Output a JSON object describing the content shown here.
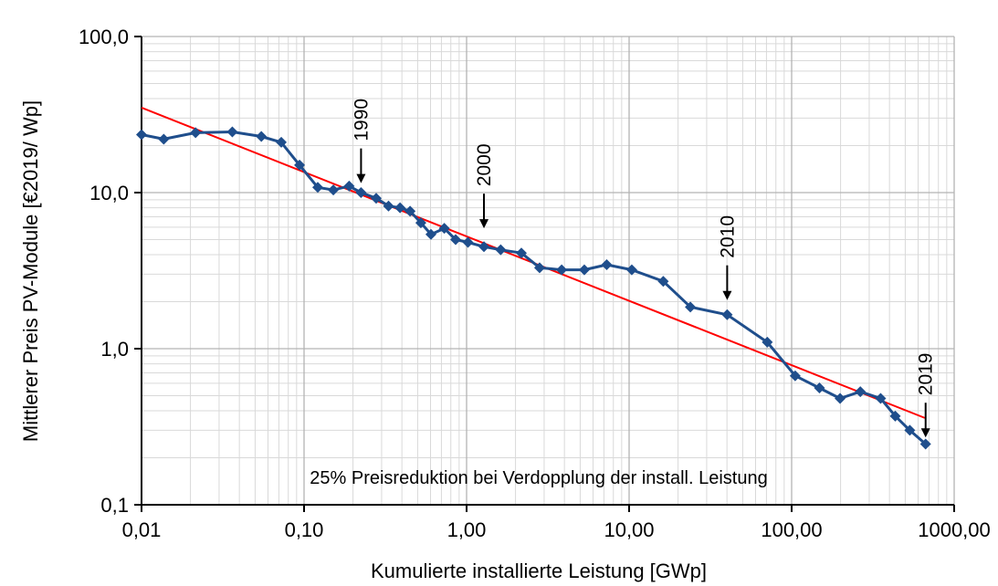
{
  "chart_data": {
    "type": "line",
    "x_scale": "log",
    "y_scale": "log",
    "xlabel": "Kumulierte installierte Leistung [GWp]",
    "ylabel": "Mittlerer Preis PV-Module [€2019/ Wp]",
    "xlim": [
      0.01,
      1000
    ],
    "ylim": [
      0.1,
      100
    ],
    "x_ticks": [
      {
        "value": 0.01,
        "label": "0,01"
      },
      {
        "value": 0.1,
        "label": "0,10"
      },
      {
        "value": 1,
        "label": "1,00"
      },
      {
        "value": 10,
        "label": "10,00"
      },
      {
        "value": 100,
        "label": "100,00"
      },
      {
        "value": 1000,
        "label": "1000,00"
      }
    ],
    "y_ticks": [
      {
        "value": 0.1,
        "label": "0,1"
      },
      {
        "value": 1,
        "label": "1,0"
      },
      {
        "value": 10,
        "label": "10,0"
      },
      {
        "value": 100,
        "label": "100,0"
      }
    ],
    "grid": "major and minor, both axes",
    "series": [
      {
        "color": "#1f4e8c",
        "marker": "diamond",
        "points": [
          [
            0.01,
            23.5
          ],
          [
            0.0137,
            22.0
          ],
          [
            0.0215,
            24.2
          ],
          [
            0.0362,
            24.5
          ],
          [
            0.0546,
            22.9
          ],
          [
            0.0724,
            21.0
          ],
          [
            0.0938,
            15.0
          ],
          [
            0.1214,
            10.8
          ],
          [
            0.1514,
            10.4
          ],
          [
            0.1894,
            11.0
          ],
          [
            0.2242,
            10.0
          ],
          [
            0.2779,
            9.2
          ],
          [
            0.3309,
            8.2
          ],
          [
            0.3896,
            8.0
          ],
          [
            0.4492,
            7.6
          ],
          [
            0.5234,
            6.4
          ],
          [
            0.6037,
            5.4
          ],
          [
            0.7293,
            5.9
          ],
          [
            0.8562,
            5.0
          ],
          [
            1.0196,
            4.8
          ],
          [
            1.2789,
            4.5
          ],
          [
            1.6214,
            4.3
          ],
          [
            2.1732,
            4.1
          ],
          [
            2.8137,
            3.3
          ],
          [
            3.8463,
            3.2
          ],
          [
            5.3017,
            3.2
          ],
          [
            7.2811,
            3.45
          ],
          [
            10.387,
            3.2
          ],
          [
            16.221,
            2.7
          ],
          [
            23.814,
            1.85
          ],
          [
            40.117,
            1.65
          ],
          [
            70.829,
            1.1
          ],
          [
            105.16,
            0.67
          ],
          [
            148.32,
            0.56
          ],
          [
            198.62,
            0.48
          ],
          [
            264.58,
            0.53
          ],
          [
            352.91,
            0.48
          ],
          [
            434.05,
            0.37
          ],
          [
            533.38,
            0.3
          ],
          [
            667.3,
            0.245
          ]
        ]
      }
    ],
    "trendline": {
      "color": "#ff0000",
      "points": [
        [
          0.01,
          35.0
        ],
        [
          660,
          0.36
        ]
      ]
    },
    "year_markers": [
      {
        "label": "1990",
        "x": 0.2242,
        "arrow_tip_y": 11.5
      },
      {
        "label": "2000",
        "x": 1.2789,
        "arrow_tip_y": 5.9
      },
      {
        "label": "2010",
        "x": 40.117,
        "arrow_tip_y": 2.05
      },
      {
        "label": "2019",
        "x": 667.3,
        "arrow_tip_y": 0.27
      }
    ],
    "annotation": "25% Preisreduktion bei Verdopplung der install. Leistung"
  }
}
